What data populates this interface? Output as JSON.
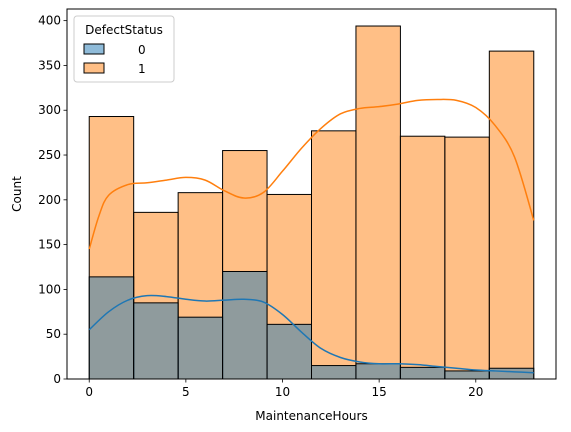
{
  "chart_data": {
    "type": "histogram",
    "xlabel": "MaintenanceHours",
    "ylabel": "Count",
    "xlim": [
      -1.15,
      24.15
    ],
    "ylim": [
      0,
      413
    ],
    "xticks": [
      0,
      5,
      10,
      15,
      20
    ],
    "yticks": [
      0,
      50,
      100,
      150,
      200,
      250,
      300,
      350,
      400
    ],
    "bin_edges": [
      0,
      2.3,
      4.6,
      6.9,
      9.2,
      11.5,
      13.8,
      16.1,
      18.4,
      20.7,
      23
    ],
    "series": [
      {
        "name": "0",
        "color": "#1f77b4",
        "values": [
          114,
          85,
          69,
          120,
          61,
          15,
          17,
          13,
          9,
          12
        ],
        "kde": [
          [
            0,
            55
          ],
          [
            1,
            75
          ],
          [
            2,
            88
          ],
          [
            3,
            93
          ],
          [
            4,
            92
          ],
          [
            5,
            89
          ],
          [
            6,
            87
          ],
          [
            7,
            88
          ],
          [
            8,
            89
          ],
          [
            9,
            86
          ],
          [
            10,
            72
          ],
          [
            11,
            52
          ],
          [
            12,
            34
          ],
          [
            13,
            24
          ],
          [
            14,
            19
          ],
          [
            15,
            17
          ],
          [
            16,
            17
          ],
          [
            17,
            16
          ],
          [
            18,
            14
          ],
          [
            19,
            12
          ],
          [
            20,
            10
          ],
          [
            21,
            9
          ],
          [
            22,
            8
          ],
          [
            23,
            7
          ]
        ]
      },
      {
        "name": "1",
        "color": "#ff7f0e",
        "values": [
          293,
          186,
          208,
          255,
          206,
          277,
          394,
          271,
          270,
          366
        ],
        "kde": [
          [
            0,
            145
          ],
          [
            0.5,
            182
          ],
          [
            1,
            205
          ],
          [
            2,
            217
          ],
          [
            3,
            219
          ],
          [
            4,
            222
          ],
          [
            5,
            225
          ],
          [
            6,
            222
          ],
          [
            7,
            210
          ],
          [
            8,
            202
          ],
          [
            9,
            208
          ],
          [
            10,
            232
          ],
          [
            11,
            258
          ],
          [
            12,
            280
          ],
          [
            13,
            296
          ],
          [
            14,
            302
          ],
          [
            15,
            304
          ],
          [
            16,
            307
          ],
          [
            17,
            311
          ],
          [
            18,
            312
          ],
          [
            19,
            311
          ],
          [
            20,
            303
          ],
          [
            21,
            283
          ],
          [
            22,
            248
          ],
          [
            23,
            177
          ]
        ]
      }
    ],
    "legend": {
      "title": "DefectStatus",
      "position": "top-left"
    },
    "grid": false
  }
}
